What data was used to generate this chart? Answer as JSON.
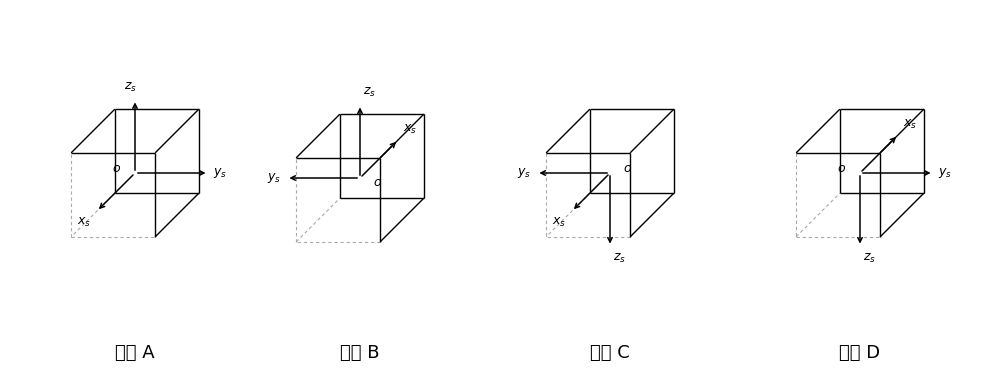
{
  "positions": [
    "A",
    "B",
    "C",
    "D"
  ],
  "labels": [
    "位置 A",
    "位置 B",
    "位置 C",
    "位置 D"
  ],
  "bg_color": "#ffffff",
  "line_color": "#000000",
  "dashed_color": "#aaaaaa",
  "label_fontsize": 13,
  "axis_label_fontsize": 10
}
